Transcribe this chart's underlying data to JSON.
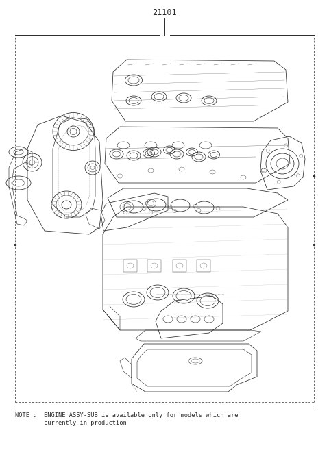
{
  "title_number": "21101",
  "note_line1": "NOTE :  ENGINE ASSY-SUB is available only for models which are",
  "note_line2": "        currently in production",
  "bg_color": "#ffffff",
  "line_color": "#2a2a2a",
  "fig_width": 4.8,
  "fig_height": 6.57,
  "dpi": 100
}
